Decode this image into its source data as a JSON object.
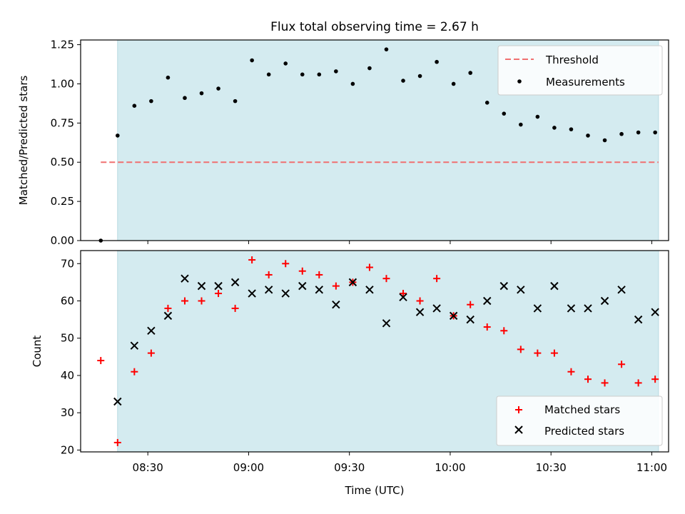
{
  "title": "Flux total observing time = 2.67 h",
  "chart_data": [
    {
      "type": "scatter",
      "ylabel": "Matched/Predicted stars",
      "ylim": [
        0,
        1.28
      ],
      "yticks": [
        0.0,
        0.25,
        0.5,
        0.75,
        1.0,
        1.25
      ],
      "ytick_labels": [
        "0.00",
        "0.25",
        "0.50",
        "0.75",
        "1.00",
        "1.25"
      ],
      "threshold": 0.5,
      "threshold_range": [
        "08:16",
        "11:02"
      ],
      "observing_window": [
        "08:21",
        "11:02"
      ],
      "legend_position": "top-right",
      "legend": [
        "Threshold",
        "Measurements"
      ],
      "x": [
        "08:16",
        "08:21",
        "08:26",
        "08:31",
        "08:36",
        "08:41",
        "08:46",
        "08:51",
        "08:56",
        "09:01",
        "09:06",
        "09:11",
        "09:16",
        "09:21",
        "09:26",
        "09:31",
        "09:36",
        "09:41",
        "09:46",
        "09:51",
        "09:56",
        "10:01",
        "10:06",
        "10:11",
        "10:16",
        "10:21",
        "10:26",
        "10:31",
        "10:36",
        "10:41",
        "10:46",
        "10:51",
        "10:56",
        "11:01"
      ],
      "series": [
        {
          "name": "Measurements",
          "color": "#000000",
          "values": [
            0.0,
            0.67,
            0.86,
            0.89,
            1.04,
            0.91,
            0.94,
            0.97,
            0.89,
            1.15,
            1.06,
            1.13,
            1.06,
            1.06,
            1.08,
            1.0,
            1.1,
            1.22,
            1.02,
            1.05,
            1.14,
            1.0,
            1.07,
            0.88,
            0.81,
            0.74,
            0.79,
            0.72,
            0.71,
            0.67,
            0.64,
            0.68,
            0.69,
            0.69
          ]
        }
      ],
      "threshold_color": "#f07070",
      "window_color": "#d4ebf0"
    },
    {
      "type": "scatter",
      "xlabel": "Time (UTC)",
      "ylabel": "Count",
      "ylim": [
        19.5,
        73.5
      ],
      "yticks": [
        20,
        30,
        40,
        50,
        60,
        70
      ],
      "ytick_labels": [
        "20",
        "30",
        "40",
        "50",
        "60",
        "70"
      ],
      "xlim": [
        "08:10",
        "11:05"
      ],
      "xticks": [
        "08:30",
        "09:00",
        "09:30",
        "10:00",
        "10:30",
        "11:00"
      ],
      "observing_window": [
        "08:21",
        "11:02"
      ],
      "legend_position": "bottom-right",
      "legend": [
        "Matched stars",
        "Predicted stars"
      ],
      "series": [
        {
          "name": "Matched stars",
          "marker": "+",
          "color": "#ff0000",
          "x": [
            "08:16",
            "08:21",
            "08:26",
            "08:31",
            "08:36",
            "08:41",
            "08:46",
            "08:51",
            "08:56",
            "09:01",
            "09:06",
            "09:11",
            "09:16",
            "09:21",
            "09:26",
            "09:31",
            "09:36",
            "09:41",
            "09:46",
            "09:51",
            "09:56",
            "10:01",
            "10:06",
            "10:11",
            "10:16",
            "10:21",
            "10:26",
            "10:31",
            "10:36",
            "10:41",
            "10:46",
            "10:51",
            "10:56",
            "11:01"
          ],
          "values": [
            44,
            22,
            41,
            46,
            58,
            60,
            60,
            62,
            58,
            71,
            67,
            70,
            68,
            67,
            64,
            65,
            69,
            66,
            62,
            60,
            66,
            56,
            59,
            53,
            52,
            47,
            46,
            46,
            41,
            39,
            38,
            43,
            38,
            39
          ]
        },
        {
          "name": "Predicted stars",
          "marker": "x",
          "color": "#000000",
          "x": [
            "08:21",
            "08:26",
            "08:31",
            "08:36",
            "08:41",
            "08:46",
            "08:51",
            "08:56",
            "09:01",
            "09:06",
            "09:11",
            "09:16",
            "09:21",
            "09:26",
            "09:31",
            "09:36",
            "09:41",
            "09:46",
            "09:51",
            "09:56",
            "10:01",
            "10:06",
            "10:11",
            "10:16",
            "10:21",
            "10:26",
            "10:31",
            "10:36",
            "10:41",
            "10:46",
            "10:51",
            "10:56",
            "11:01"
          ],
          "values": [
            33,
            48,
            52,
            56,
            66,
            64,
            64,
            65,
            62,
            63,
            62,
            64,
            63,
            59,
            65,
            63,
            54,
            61,
            57,
            58,
            56,
            55,
            60,
            64,
            63,
            58,
            64,
            58,
            58,
            60,
            63,
            55,
            57
          ]
        }
      ],
      "window_color": "#d4ebf0"
    }
  ]
}
